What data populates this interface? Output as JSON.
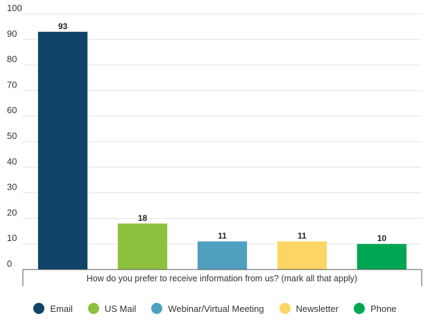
{
  "chart_data": {
    "type": "bar",
    "categories": [
      "Email",
      "US Mail",
      "Webinar/Virtual Meeting",
      "Newsletter",
      "Phone"
    ],
    "values": [
      93,
      18,
      11,
      11,
      10
    ],
    "colors": [
      "#0d4468",
      "#8dc03d",
      "#4fa0c0",
      "#fdd565",
      "#00a652"
    ],
    "xlabel": "How do you prefer to receive information from us? (mark all that apply)",
    "ylim": [
      0,
      100
    ],
    "yticks": [
      0,
      10,
      20,
      30,
      40,
      50,
      60,
      70,
      80,
      90,
      100
    ],
    "grid": true,
    "legend_position": "bottom"
  }
}
